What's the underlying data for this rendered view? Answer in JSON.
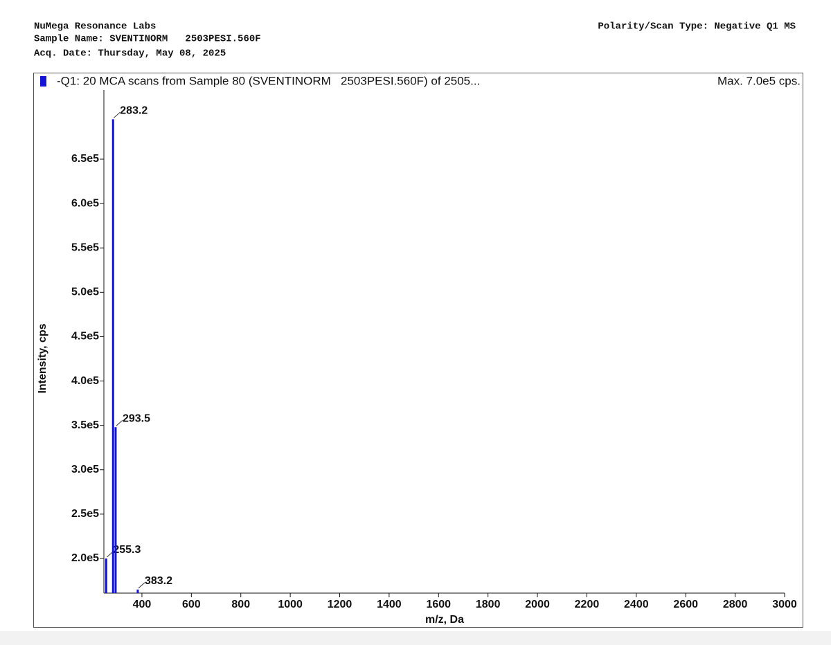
{
  "header": {
    "lab": "NuMega Resonance Labs",
    "sample": "Sample Name: SVENTINORM   2503PESI.560F",
    "date": "Acq. Date: Thursday, May 08, 2025",
    "scan_type": "Polarity/Scan Type: Negative Q1 MS"
  },
  "chart_data": {
    "type": "bar",
    "title": "-Q1: 20 MCA scans from Sample 80 (SVENTINORM   2503PESI.560F) of 2505...",
    "annotation": "Max. 7.0e5 cps.",
    "x_label": "m/z, Da",
    "y_label": "Intensity, cps",
    "x": [
      255.3,
      283.2,
      293.5,
      383.2
    ],
    "series": [
      {
        "name": "-Q1",
        "color": "#1414d8",
        "values": [
          200000,
          695000,
          348000,
          165000
        ]
      }
    ],
    "xlim": [
      246,
      3000
    ],
    "xticks": [
      400,
      600,
      800,
      1000,
      1200,
      1400,
      1600,
      1800,
      2000,
      2200,
      2400,
      2600,
      2800,
      3000
    ],
    "ylim": [
      161000,
      728000
    ],
    "yticks": [
      {
        "value": 200000,
        "label": "2.0e5"
      },
      {
        "value": 250000,
        "label": "2.5e5"
      },
      {
        "value": 300000,
        "label": "3.0e5"
      },
      {
        "value": 350000,
        "label": "3.5e5"
      },
      {
        "value": 400000,
        "label": "4.0e5"
      },
      {
        "value": 450000,
        "label": "4.5e5"
      },
      {
        "value": 500000,
        "label": "5.0e5"
      },
      {
        "value": 550000,
        "label": "5.5e5"
      },
      {
        "value": 600000,
        "label": "6.0e5"
      },
      {
        "value": 650000,
        "label": "6.5e5"
      }
    ],
    "grid": false
  }
}
